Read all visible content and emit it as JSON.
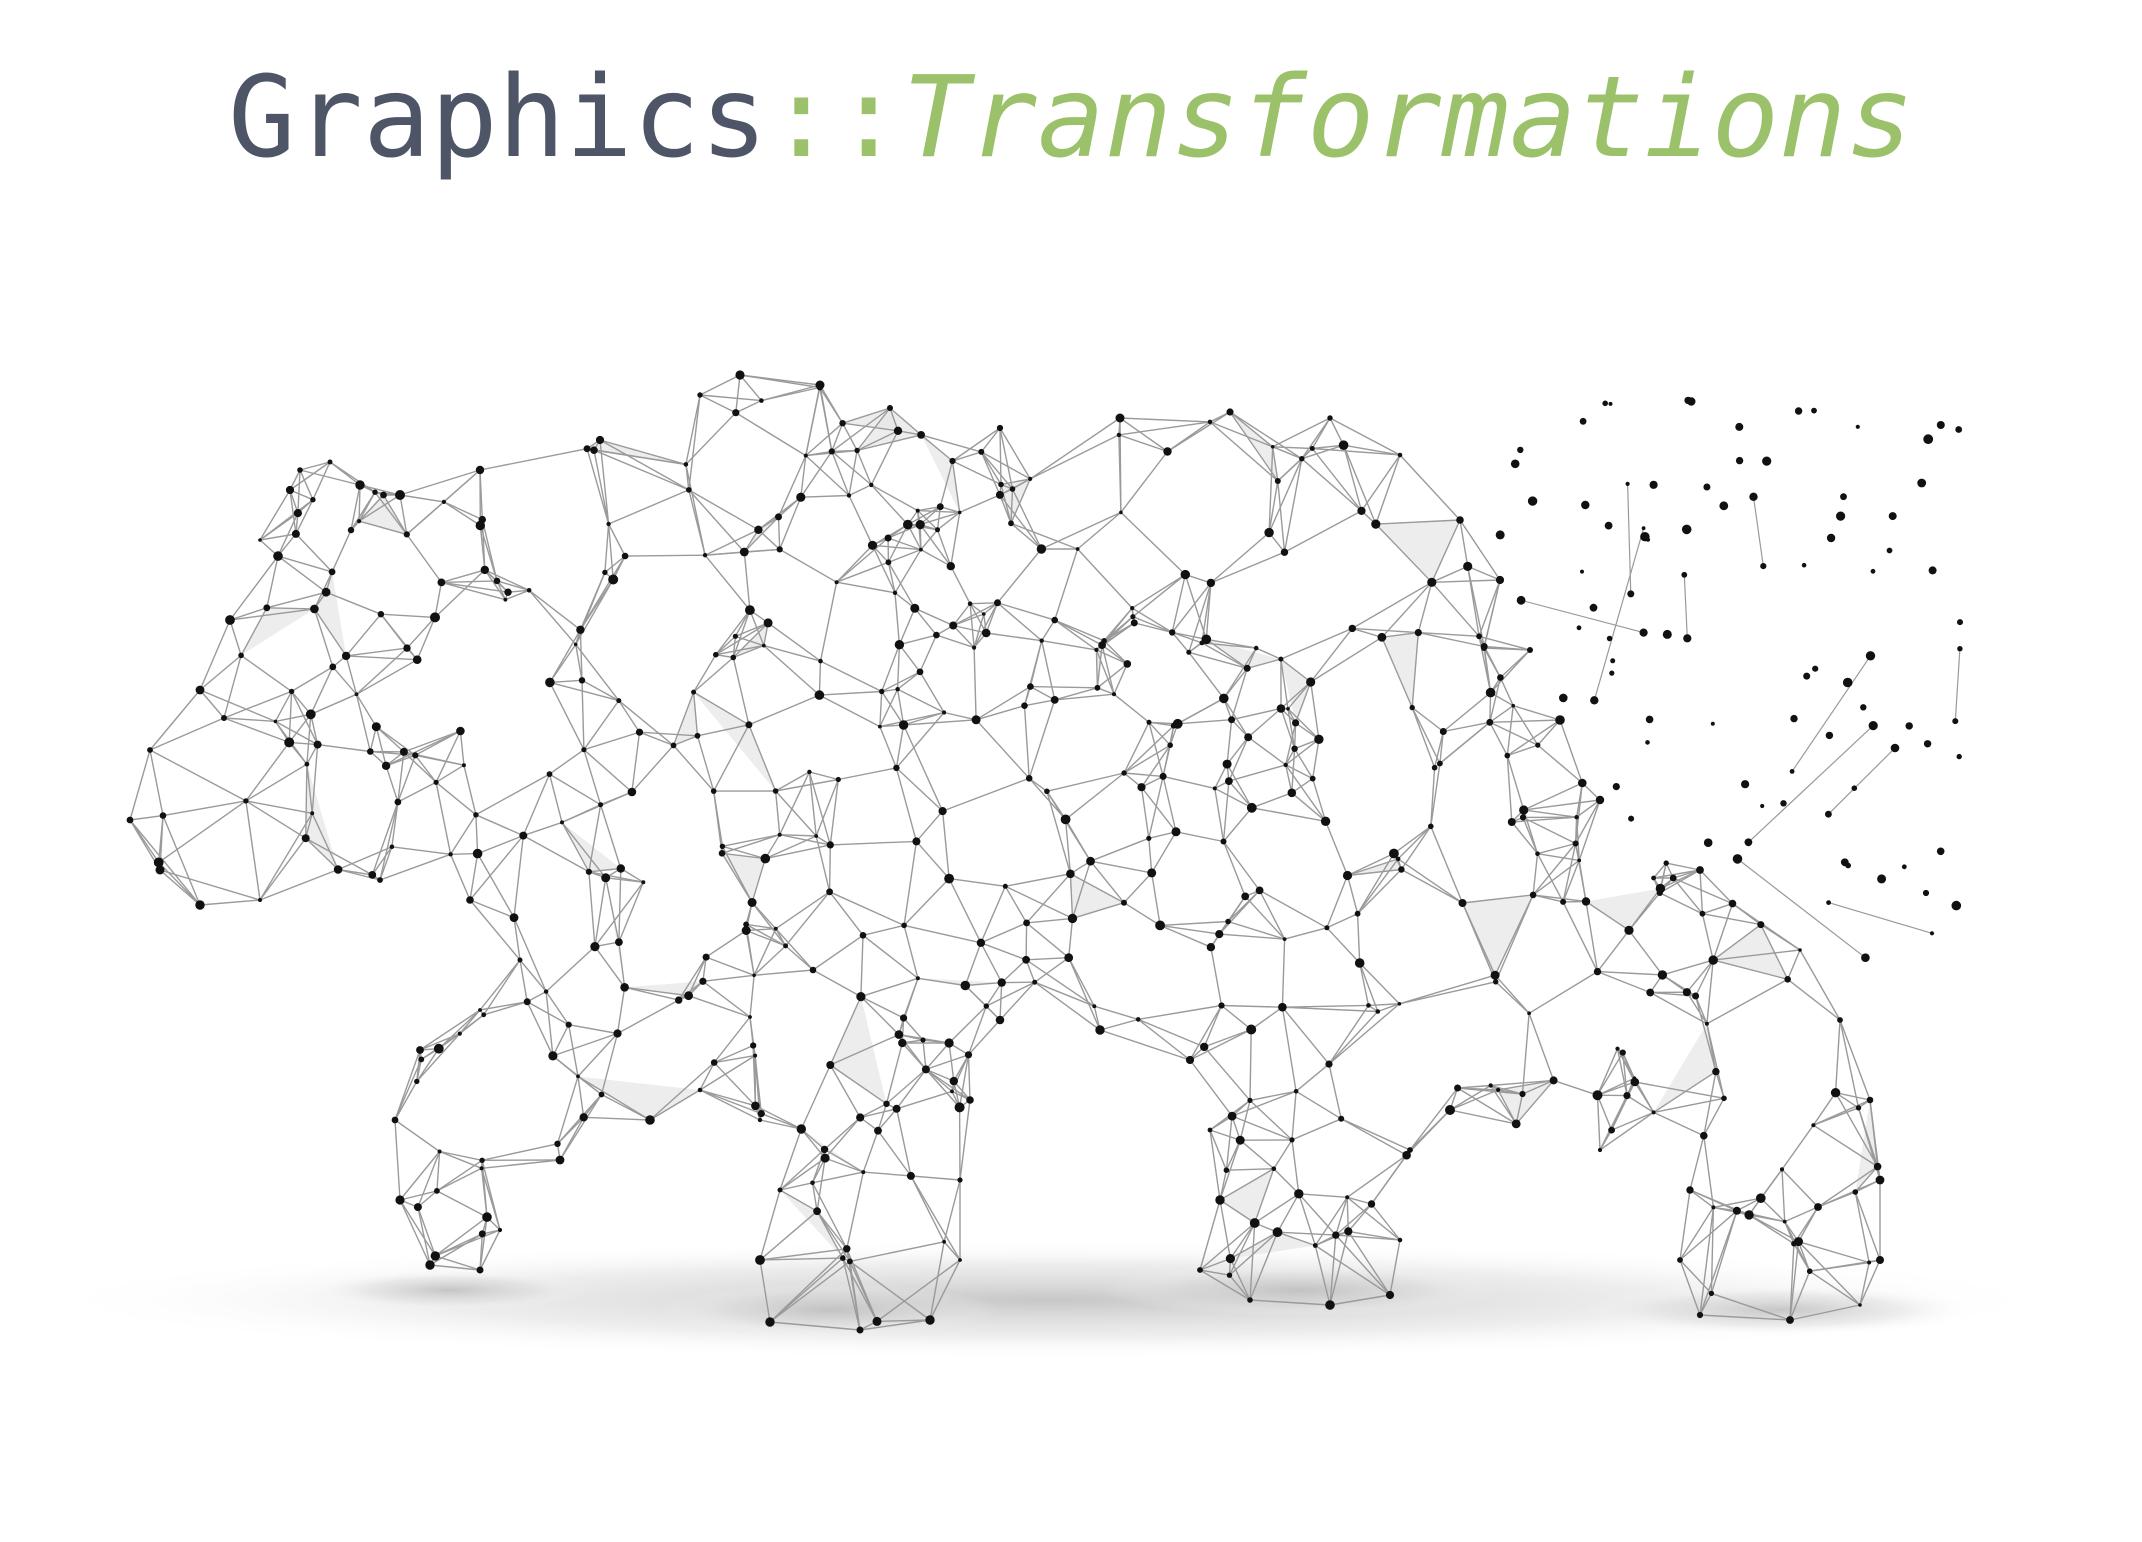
{
  "slide": {
    "title": {
      "namespace": "Graphics",
      "separator": "::",
      "function": "Transformations"
    },
    "artwork": {
      "subject": "polygonal-wireframe-bear",
      "icon": "bear-wireframe-illustration",
      "colors": {
        "title_primary": "#4d5566",
        "title_accent": "#9bc26a",
        "node": "#111111",
        "edge": "#9a9a9a",
        "facet": "#e6e6e6",
        "shadow": "#cfcfcf"
      }
    }
  }
}
